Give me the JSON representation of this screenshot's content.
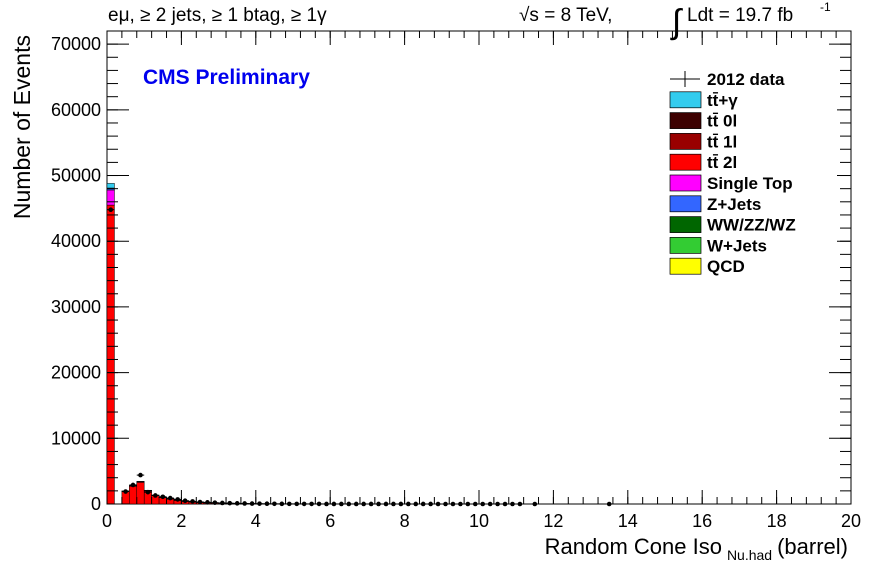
{
  "header": {
    "channel": "eμ, ≥ 2 jets, ≥ 1 btag, ≥ 1γ",
    "energy": "√s = 8 TeV,",
    "lumi_integral": "∫",
    "lumi": "Ldt = 19.7 fb",
    "lumi_exp": "-1"
  },
  "cms_label": "CMS Preliminary",
  "chart_data": {
    "type": "bar",
    "stacked": true,
    "title": "",
    "xlabel_main": "Random Cone Iso",
    "xlabel_sub": "Nu.had",
    "xlabel_suffix": "(barrel)",
    "ylabel": "Number of Events",
    "xlim": [
      0,
      20
    ],
    "ylim": [
      0,
      72000
    ],
    "bin_width": 0.2,
    "x_ticks": [
      "0",
      "2",
      "4",
      "6",
      "8",
      "10",
      "12",
      "14",
      "16",
      "18",
      "20"
    ],
    "y_ticks": [
      "0",
      "10000",
      "20000",
      "30000",
      "40000",
      "50000",
      "60000",
      "70000"
    ],
    "legend_position": "top-right",
    "legend": [
      {
        "label": "2012 data",
        "color": "#000000",
        "kind": "data"
      },
      {
        "label": "tt̄+γ",
        "color": "#33ccee",
        "kind": "fill"
      },
      {
        "label": "tt̄ 0l",
        "color": "#3d0000",
        "kind": "fill"
      },
      {
        "label": "tt̄ 1l",
        "color": "#990000",
        "kind": "fill"
      },
      {
        "label": "tt̄ 2l",
        "color": "#ff0000",
        "kind": "fill"
      },
      {
        "label": "Single Top",
        "color": "#ff00ff",
        "kind": "fill"
      },
      {
        "label": "Z+Jets",
        "color": "#3366ff",
        "kind": "fill"
      },
      {
        "label": "WW/ZZ/WZ",
        "color": "#006600",
        "kind": "fill"
      },
      {
        "label": "W+Jets",
        "color": "#33cc33",
        "kind": "fill"
      },
      {
        "label": "QCD",
        "color": "#ffff00",
        "kind": "fill"
      }
    ],
    "mc_bins_x": [
      0.0,
      0.2,
      0.4,
      0.6,
      0.8,
      1.0,
      1.2,
      1.4,
      1.6,
      1.8,
      2.0,
      2.2,
      2.4,
      2.6,
      2.8,
      3.0,
      3.2,
      3.4,
      3.6,
      3.8
    ],
    "series": [
      {
        "name": "tt̄ 2l",
        "color": "#ff0000",
        "values": [
          45500,
          0,
          1900,
          2700,
          3300,
          2000,
          1300,
          1000,
          800,
          600,
          450,
          350,
          280,
          220,
          180,
          140,
          110,
          90,
          70,
          50
        ]
      },
      {
        "name": "Single Top",
        "color": "#ff00ff",
        "values": [
          2300,
          0,
          60,
          80,
          90,
          60,
          40,
          30,
          25,
          20,
          15,
          10,
          8,
          6,
          5,
          4,
          3,
          2,
          2,
          1
        ]
      },
      {
        "name": "Z+Jets",
        "color": "#3366ff",
        "values": [
          300,
          0,
          10,
          15,
          20,
          10,
          8,
          6,
          5,
          4,
          3,
          2,
          2,
          1,
          1,
          1,
          1,
          0,
          0,
          0
        ]
      },
      {
        "name": "tt̄+γ",
        "color": "#33ccee",
        "values": [
          700,
          0,
          20,
          30,
          40,
          25,
          15,
          10,
          8,
          6,
          5,
          4,
          3,
          2,
          2,
          1,
          1,
          1,
          1,
          0
        ]
      }
    ],
    "data_points": {
      "x": [
        0.1,
        0.5,
        0.7,
        0.9,
        1.1,
        1.3,
        1.5,
        1.7,
        1.9,
        2.1,
        2.3,
        2.5,
        2.7,
        2.9,
        3.1,
        3.3,
        3.5,
        3.7,
        3.9,
        4.1,
        4.3,
        4.5,
        4.7,
        4.9,
        5.1,
        5.3,
        5.5,
        5.7,
        5.9,
        6.1,
        6.3,
        6.5,
        6.7,
        6.9,
        7.1,
        7.3,
        7.5,
        7.7,
        7.9,
        8.1,
        8.3,
        8.5,
        8.7,
        8.9,
        9.1,
        9.3,
        9.5,
        9.7,
        9.9,
        10.1,
        10.3,
        10.5,
        10.7,
        10.9,
        11.1,
        11.5,
        13.5
      ],
      "y": [
        44800,
        1900,
        2900,
        4400,
        1800,
        1300,
        1100,
        900,
        700,
        500,
        400,
        300,
        250,
        200,
        160,
        130,
        100,
        80,
        60,
        50,
        40,
        30,
        25,
        20,
        18,
        15,
        12,
        10,
        8,
        7,
        6,
        5,
        5,
        4,
        4,
        3,
        3,
        3,
        2,
        2,
        2,
        2,
        2,
        1,
        1,
        1,
        1,
        1,
        1,
        1,
        1,
        1,
        1,
        1,
        1,
        1,
        1
      ]
    }
  }
}
